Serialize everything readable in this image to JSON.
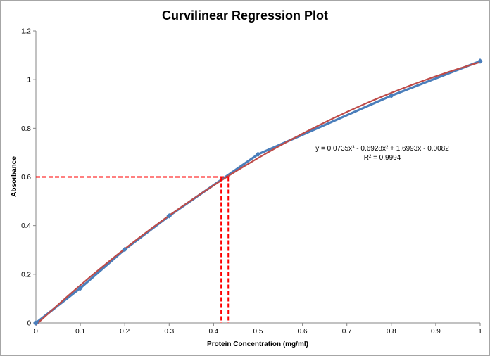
{
  "chart_data": {
    "type": "scatter",
    "title": "Curvilinear Regression Plot",
    "xlabel": "Protein Concentration (mg/ml)",
    "ylabel": "Absorbance",
    "xlim": [
      0,
      1
    ],
    "ylim": [
      0,
      1.2
    ],
    "x_ticks": [
      "0",
      "0.1",
      "0.2",
      "0.3",
      "0.4",
      "0.5",
      "0.6",
      "0.7",
      "0.8",
      "0.9",
      "1"
    ],
    "y_ticks": [
      "0",
      "0.2",
      "0.4",
      "0.6",
      "0.8",
      "1",
      "1.2"
    ],
    "grid": false,
    "series": [
      {
        "type": "line-markers",
        "color": "#4a7ebb",
        "x": [
          0,
          0.1,
          0.2,
          0.3,
          0.5,
          0.8,
          1.0
        ],
        "y": [
          0,
          0.143,
          0.302,
          0.44,
          0.693,
          0.934,
          1.076
        ]
      }
    ],
    "trendline": {
      "type": "polynomial-3",
      "color": "#be4b48",
      "coefficients": [
        0.0735,
        -0.6928,
        1.6993,
        -0.0082
      ],
      "equation": "y = 0.0735x³ - 0.6928x² + 1.6993x - 0.0082",
      "r_squared": "R² = 0.9994"
    },
    "reference_lines": {
      "color": "#ff0000",
      "y": 0.6,
      "x_values": [
        0.417,
        0.433
      ]
    }
  }
}
